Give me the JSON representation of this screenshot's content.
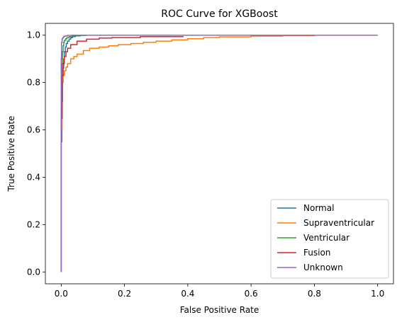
{
  "chart_data": {
    "type": "line",
    "title": "ROC Curve for XGBoost",
    "xlabel": "False Positive Rate",
    "ylabel": "True Positive Rate",
    "xlim": [
      -0.05,
      1.05
    ],
    "ylim": [
      -0.05,
      1.05
    ],
    "xticks": [
      0.0,
      0.2,
      0.4,
      0.6,
      0.8,
      1.0
    ],
    "yticks": [
      0.0,
      0.2,
      0.4,
      0.6,
      0.8,
      1.0
    ],
    "xtick_labels": [
      "0.0",
      "0.2",
      "0.4",
      "0.6",
      "0.8",
      "1.0"
    ],
    "ytick_labels": [
      "0.0",
      "0.2",
      "0.4",
      "0.6",
      "0.8",
      "1.0"
    ],
    "grid": false,
    "legend_position": "lower-right",
    "series": [
      {
        "name": "Normal",
        "color": "#1f77b4",
        "x": [
          0.0,
          0.0,
          0.002,
          0.004,
          0.006,
          0.008,
          0.01,
          0.013,
          0.016,
          0.02,
          0.025,
          0.03,
          0.036,
          0.045,
          0.06,
          0.08,
          1.0
        ],
        "y": [
          0.0,
          0.55,
          0.72,
          0.8,
          0.86,
          0.9,
          0.93,
          0.95,
          0.965,
          0.975,
          0.983,
          0.99,
          0.994,
          0.997,
          0.999,
          1.0,
          1.0
        ]
      },
      {
        "name": "Supraventricular",
        "color": "#ff7f0e",
        "x": [
          0.0,
          0.0,
          0.003,
          0.006,
          0.01,
          0.015,
          0.02,
          0.03,
          0.04,
          0.05,
          0.07,
          0.09,
          0.12,
          0.15,
          0.18,
          0.22,
          0.26,
          0.3,
          0.35,
          0.4,
          0.45,
          0.5,
          0.6,
          0.7,
          0.8
        ],
        "y": [
          0.0,
          0.6,
          0.8,
          0.83,
          0.85,
          0.865,
          0.88,
          0.9,
          0.91,
          0.92,
          0.935,
          0.945,
          0.95,
          0.955,
          0.96,
          0.965,
          0.97,
          0.975,
          0.98,
          0.985,
          0.99,
          0.993,
          0.996,
          0.998,
          1.0
        ]
      },
      {
        "name": "Ventricular",
        "color": "#2ca02c",
        "x": [
          0.0,
          0.0,
          0.002,
          0.004,
          0.006,
          0.008,
          0.01,
          0.014,
          0.018,
          0.025,
          0.035,
          0.05,
          0.07,
          1.0
        ],
        "y": [
          0.0,
          0.7,
          0.88,
          0.93,
          0.955,
          0.97,
          0.978,
          0.985,
          0.99,
          0.994,
          0.997,
          0.999,
          1.0,
          1.0
        ]
      },
      {
        "name": "Fusion",
        "color": "#d62728",
        "x": [
          0.0,
          0.0,
          0.003,
          0.006,
          0.01,
          0.015,
          0.02,
          0.03,
          0.05,
          0.08,
          0.12,
          0.16,
          0.25,
          0.385
        ],
        "y": [
          0.0,
          0.65,
          0.83,
          0.88,
          0.91,
          0.93,
          0.945,
          0.96,
          0.975,
          0.983,
          0.988,
          0.99,
          0.994,
          0.996
        ]
      },
      {
        "name": "Unknown",
        "color": "#9467bd",
        "x": [
          0.0,
          0.0,
          0.001,
          0.003,
          0.005,
          0.008,
          0.012,
          0.02,
          0.035,
          1.0
        ],
        "y": [
          0.0,
          0.9,
          0.97,
          0.985,
          0.99,
          0.995,
          0.997,
          0.999,
          1.0,
          1.0
        ]
      }
    ]
  }
}
